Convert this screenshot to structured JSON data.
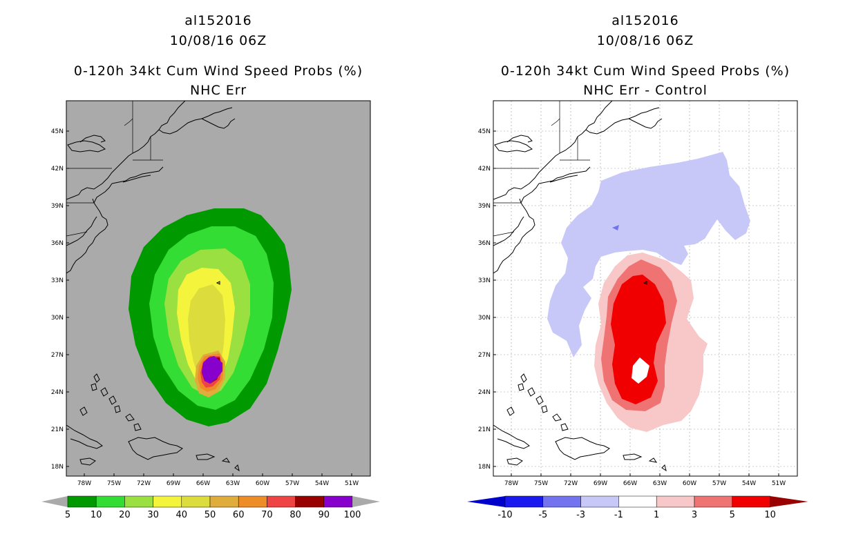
{
  "left_panel": {
    "storm_id": "al152016",
    "datetime": "10/08/16 06Z",
    "product": "0-120h 34kt Cum Wind Speed Probs (%)",
    "subtitle": "NHC Err",
    "background_color": "#aaaaaa",
    "colorbar_labels": [
      "5",
      "10",
      "20",
      "30",
      "40",
      "50",
      "60",
      "70",
      "80",
      "90",
      "100"
    ],
    "colorbar_colors": [
      "#009900",
      "#33dd33",
      "#99e040",
      "#f4f43c",
      "#dcdc3c",
      "#e0ac3c",
      "#ee8c28",
      "#ee4444",
      "#990000",
      "#8800cc"
    ]
  },
  "right_panel": {
    "storm_id": "al152016",
    "datetime": "10/08/16 06Z",
    "product": "0-120h 34kt Cum Wind Speed Probs (%)",
    "subtitle": "NHC Err - Control",
    "background_color": "#ffffff",
    "colorbar_labels": [
      "-10",
      "-5",
      "-3",
      "-1",
      "1",
      "3",
      "5",
      "10"
    ],
    "colorbar_colors": [
      "#0000cc",
      "#1a1af0",
      "#7373f0",
      "#c8c8f8",
      "#ffffff",
      "#f8c8c8",
      "#f07373",
      "#f00000",
      "#990000"
    ]
  },
  "axes": {
    "lat_labels": [
      "45N",
      "42N",
      "39N",
      "36N",
      "33N",
      "30N",
      "27N",
      "24N",
      "21N",
      "18N"
    ],
    "lon_labels": [
      "78W",
      "75W",
      "72W",
      "69W",
      "66W",
      "63W",
      "60W",
      "57W",
      "54W",
      "51W"
    ]
  }
}
